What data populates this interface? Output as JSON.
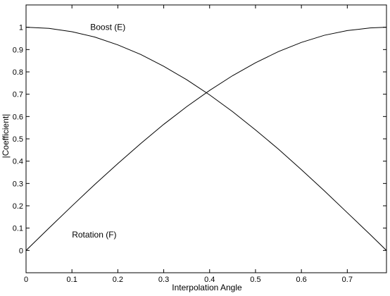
{
  "chart_data": {
    "type": "line",
    "title": "",
    "xlabel": "Interpolation Angle",
    "ylabel": "|Coefficient|",
    "xlim": [
      0,
      0.7854
    ],
    "ylim": [
      -0.1,
      1.1
    ],
    "x_ticks": [
      0,
      0.1,
      0.2,
      0.3,
      0.4,
      0.5,
      0.6,
      0.7
    ],
    "x_tick_labels": [
      "0",
      "0.1",
      "0.2",
      "0.3",
      "0.4",
      "0.5",
      "0.6",
      "0.7"
    ],
    "y_ticks": [
      0,
      0.1,
      0.2,
      0.3,
      0.4,
      0.5,
      0.6,
      0.7,
      0.8,
      0.9,
      1
    ],
    "y_tick_labels": [
      "0",
      "0.1",
      "0.2",
      "0.3",
      "0.4",
      "0.5",
      "0.6",
      "0.7",
      "0.8",
      "0.9",
      "1"
    ],
    "grid": false,
    "legend": "none",
    "line_color": "#000000",
    "series": [
      {
        "name": "Boost (E)",
        "x": [
          0,
          0.05,
          0.1,
          0.15,
          0.2,
          0.25,
          0.3,
          0.35,
          0.4,
          0.45,
          0.5,
          0.55,
          0.6,
          0.65,
          0.7,
          0.75,
          0.7854
        ],
        "y": [
          1,
          0.995,
          0.98,
          0.956,
          0.921,
          0.878,
          0.825,
          0.765,
          0.697,
          0.622,
          0.54,
          0.454,
          0.362,
          0.267,
          0.169,
          0.071,
          0
        ]
      },
      {
        "name": "Rotation (F)",
        "x": [
          0,
          0.05,
          0.1,
          0.15,
          0.2,
          0.25,
          0.3,
          0.35,
          0.4,
          0.45,
          0.5,
          0.55,
          0.6,
          0.65,
          0.7,
          0.75,
          0.7854
        ],
        "y": [
          0,
          0.1,
          0.199,
          0.296,
          0.389,
          0.479,
          0.565,
          0.644,
          0.717,
          0.783,
          0.841,
          0.891,
          0.932,
          0.964,
          0.985,
          0.997,
          1
        ]
      }
    ],
    "annotations": [
      {
        "text": "Boost (E)",
        "x": 0.14,
        "y": 1.0
      },
      {
        "text": "Rotation (F)",
        "x": 0.1,
        "y": 0.07
      }
    ]
  }
}
